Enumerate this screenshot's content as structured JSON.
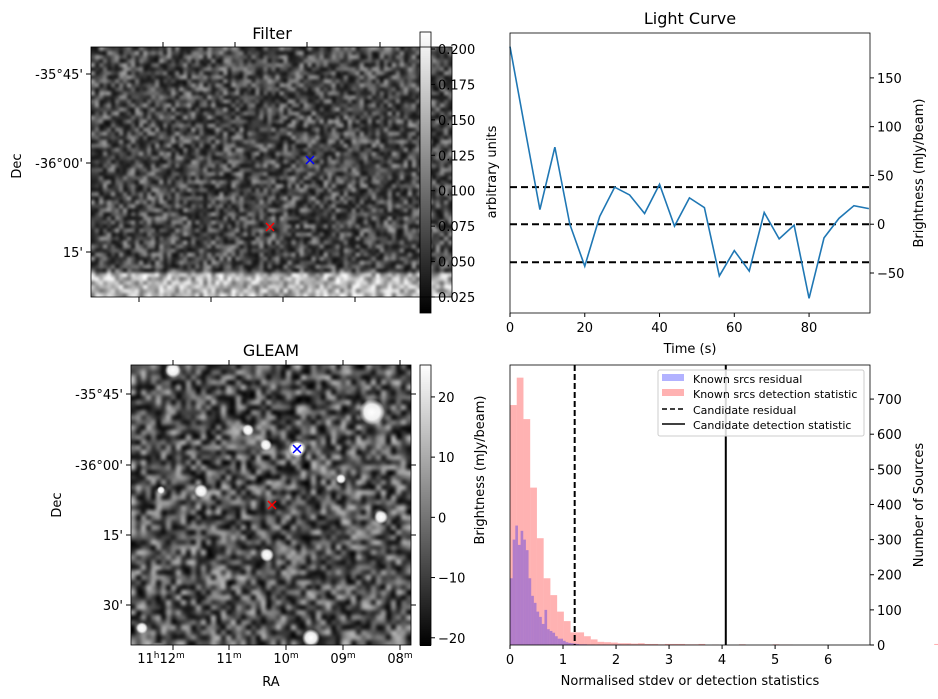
{
  "chart_data": [
    {
      "type": "image",
      "title": "Filter",
      "ylabel": "Dec",
      "yticks": [
        "-35°45'",
        "-36°00'",
        "15'"
      ],
      "colorbar": {
        "label": "arbitrary units",
        "range": [
          0.0137,
          0.212
        ],
        "ticks": [
          0.025,
          0.05,
          0.075,
          0.1,
          0.125,
          0.15,
          0.175,
          0.2
        ],
        "tick_labels": [
          "0.025",
          "0.050",
          "0.075",
          "0.100",
          "0.125",
          "0.150",
          "0.175",
          "0.200"
        ]
      },
      "markers": [
        {
          "name": "candidate",
          "symbol": "x",
          "color": "#ff0000"
        },
        {
          "name": "known-source",
          "symbol": "x",
          "color": "#0000ff"
        }
      ]
    },
    {
      "type": "image",
      "title": "GLEAM",
      "xlabel": "RA",
      "ylabel": "Dec",
      "xticks": [
        "11h12m",
        "11m",
        "10m",
        "09m",
        "08m"
      ],
      "yticks": [
        "-35°45'",
        "-36°00'",
        "15'",
        "30'"
      ],
      "colorbar": {
        "label": "Brightness (mJy/beam)",
        "range": [
          -21.2,
          25.3
        ],
        "ticks": [
          -20,
          -10,
          0,
          10,
          20
        ],
        "tick_labels": [
          "−20",
          "−10",
          "0",
          "10",
          "20"
        ]
      },
      "markers": [
        {
          "name": "candidate",
          "symbol": "x",
          "color": "#ff0000"
        },
        {
          "name": "known-source",
          "symbol": "x",
          "color": "#0000ff"
        }
      ]
    },
    {
      "type": "line",
      "title": "Light Curve",
      "xlabel": "Time (s)",
      "ylabel": "Brightness (mJy/beam)",
      "xlim": [
        0,
        96.3
      ],
      "ylim": [
        -91,
        196
      ],
      "xticks": [
        0,
        20,
        40,
        60,
        80
      ],
      "yticks": [
        -50,
        0,
        50,
        100,
        150
      ],
      "ytick_labels": [
        "−50",
        "0",
        "50",
        "100",
        "150"
      ],
      "series": [
        {
          "name": "light curve",
          "color": "#1f77b4",
          "x": [
            0,
            4,
            8,
            12,
            16,
            20,
            24,
            28,
            32,
            36,
            40,
            44,
            48,
            52,
            56,
            60,
            64,
            68,
            72,
            76,
            80,
            84,
            88,
            92,
            96
          ],
          "y": [
            182,
            98,
            15,
            79,
            0,
            -43,
            8,
            38,
            30,
            11,
            41,
            -2,
            27,
            17,
            -53,
            -27,
            -48,
            12,
            -15,
            -1,
            -76,
            -14,
            6,
            19,
            16
          ]
        }
      ],
      "hlines": [
        38,
        0,
        -39
      ]
    },
    {
      "type": "bar",
      "subtype": "histogram",
      "xlabel": "Normalised stdev or detection statistics",
      "ylabel": "Number of Sources",
      "xlim": [
        0,
        6.79
      ],
      "ylim": [
        0,
        797
      ],
      "xticks": [
        0,
        1,
        2,
        3,
        4,
        5,
        6
      ],
      "yticks": [
        0,
        100,
        200,
        300,
        400,
        500,
        600,
        700
      ],
      "legend_position": "top-right",
      "series": [
        {
          "name": "Known srcs residual",
          "color": "#0000ff",
          "bin_width": 0.05,
          "bin_start": 0,
          "values": [
            190,
            300,
            340,
            285,
            325,
            300,
            270,
            190,
            140,
            120,
            95,
            80,
            60,
            100,
            45,
            40,
            35,
            25,
            18,
            18,
            12,
            8,
            6,
            5,
            4,
            3,
            2,
            2,
            2,
            1,
            1,
            1,
            0,
            1,
            0,
            1,
            0,
            0,
            0,
            1,
            1,
            1,
            0,
            0,
            1
          ]
        },
        {
          "name": "Known srcs detection statistic",
          "color": "#ff0000",
          "bin_width": 0.127,
          "bin_start": 0,
          "values": [
            683,
            761,
            643,
            448,
            304,
            190,
            142,
            95,
            68,
            36,
            36,
            25,
            16,
            9,
            8,
            7,
            5,
            5,
            4,
            5,
            3,
            3,
            2,
            3,
            3,
            3,
            2,
            2,
            3,
            0,
            1,
            0,
            0,
            0,
            2,
            0,
            0,
            0,
            0,
            2,
            1,
            1,
            0,
            0,
            0,
            0,
            0,
            0,
            0,
            0,
            0,
            0,
            0,
            0,
            0,
            0,
            0,
            0,
            0,
            0,
            0,
            0,
            0,
            3,
            3,
            0,
            0,
            0,
            0,
            0,
            0,
            0,
            0,
            0,
            0,
            0,
            3,
            3,
            0,
            0,
            0
          ]
        }
      ],
      "vlines": [
        {
          "name": "Candidate residual",
          "x": 1.22,
          "style": "dashed"
        },
        {
          "name": "Candidate detection statistic",
          "x": 4.07,
          "style": "solid"
        }
      ]
    }
  ]
}
